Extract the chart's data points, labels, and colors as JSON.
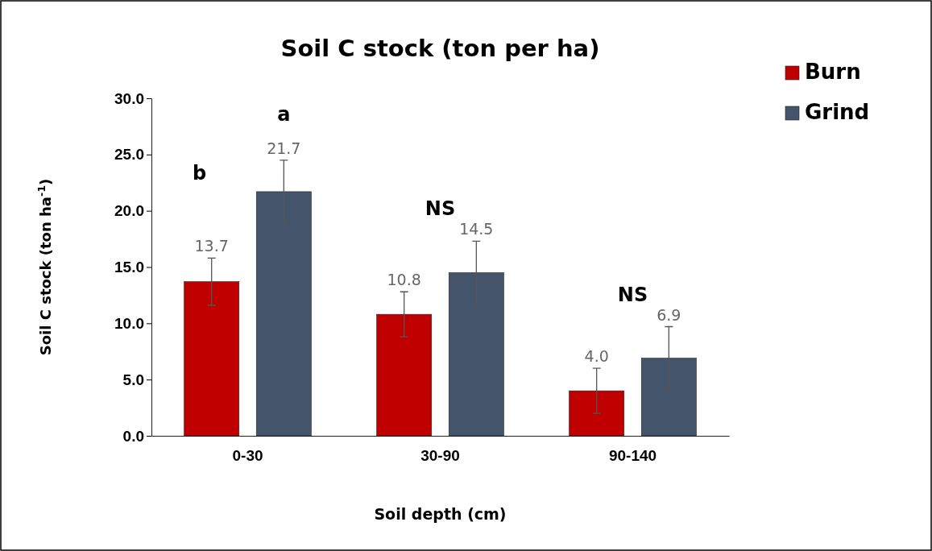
{
  "chart_data": {
    "type": "bar",
    "title": "Soil C stock (ton per ha)",
    "xlabel": "Soil depth (cm)",
    "ylabel": "Soil C stock (ton ha$^{-1}$)",
    "categories": [
      "0-30",
      "30-90",
      "90-140"
    ],
    "series": [
      {
        "name": "Burn",
        "color": "#c00000",
        "values": [
          13.7,
          10.8,
          4.0
        ],
        "errors": [
          2.1,
          2.0,
          2.0
        ],
        "value_labels": [
          "13.7",
          "10.8",
          "4.0"
        ]
      },
      {
        "name": "Grind",
        "color": "#44546a",
        "values": [
          21.7,
          14.5,
          6.9
        ],
        "errors": [
          2.8,
          2.8,
          2.8
        ],
        "value_labels": [
          "21.7",
          "14.5",
          "6.9"
        ]
      }
    ],
    "ylim": [
      0,
      30
    ],
    "yticks": [
      {
        "value": 0,
        "label": "0.0"
      },
      {
        "value": 5,
        "label": "5.0"
      },
      {
        "value": 10,
        "label": "10.0"
      },
      {
        "value": 15,
        "label": "15.0"
      },
      {
        "value": 20,
        "label": "20.0"
      },
      {
        "value": 25,
        "label": "25.0"
      },
      {
        "value": 30,
        "label": "30.0"
      }
    ],
    "annotations": [
      "b",
      "a",
      "NS",
      "NS"
    ],
    "legend": "top right",
    "grid": false
  }
}
